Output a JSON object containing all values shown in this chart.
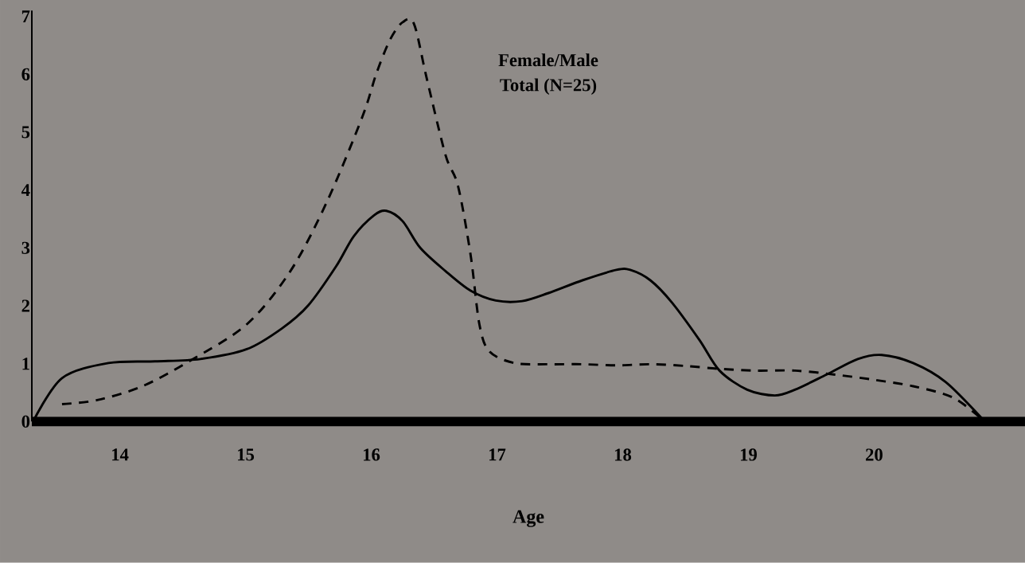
{
  "chart_data": {
    "type": "line",
    "xlabel": "Age",
    "annotations": [
      "Female/Male",
      "Total (N=25)"
    ],
    "xlim": [
      13.3,
      21.2
    ],
    "ylim": [
      0,
      7.1
    ],
    "xticks": [
      14,
      15,
      16,
      17,
      18,
      19,
      20
    ],
    "yticks": [
      0,
      1,
      2,
      3,
      4,
      5,
      6,
      7
    ],
    "grid": false,
    "marker": "none",
    "series": [
      {
        "color": "#000000",
        "line_style": "solid",
        "x": [
          13.31,
          13.54,
          13.91,
          14.28,
          14.64,
          15.01,
          15.29,
          15.5,
          15.72,
          15.86,
          16.02,
          16.12,
          16.25,
          16.39,
          16.59,
          16.79,
          16.99,
          17.2,
          17.41,
          17.68,
          17.95,
          18.06,
          18.22,
          18.39,
          18.61,
          18.77,
          18.99,
          19.21,
          19.37,
          19.62,
          19.87,
          20.06,
          20.31,
          20.57,
          20.88
        ],
        "values": [
          0,
          0.75,
          1.01,
          1.04,
          1.08,
          1.25,
          1.61,
          2.01,
          2.68,
          3.2,
          3.56,
          3.64,
          3.46,
          3.0,
          2.6,
          2.26,
          2.09,
          2.08,
          2.22,
          2.44,
          2.62,
          2.62,
          2.44,
          2.06,
          1.41,
          0.88,
          0.55,
          0.45,
          0.55,
          0.81,
          1.08,
          1.15,
          1.01,
          0.68,
          0
        ]
      },
      {
        "color": "#000000",
        "line_style": "dashed",
        "x": [
          13.54,
          13.82,
          14.18,
          14.55,
          15.01,
          15.36,
          15.65,
          15.93,
          16.04,
          16.15,
          16.25,
          16.34,
          16.44,
          16.59,
          16.69,
          16.79,
          16.86,
          16.94,
          17.14,
          17.41,
          17.68,
          17.95,
          18.22,
          18.5,
          18.77,
          19.06,
          19.37,
          19.69,
          20.0,
          20.31,
          20.63,
          20.88
        ],
        "values": [
          0.3,
          0.37,
          0.61,
          1.04,
          1.68,
          2.61,
          3.81,
          5.27,
          6.01,
          6.6,
          6.9,
          6.87,
          5.94,
          4.61,
          4.07,
          2.88,
          1.68,
          1.21,
          1.01,
          0.99,
          0.99,
          0.97,
          0.99,
          0.96,
          0.91,
          0.88,
          0.88,
          0.81,
          0.72,
          0.61,
          0.41,
          0
        ]
      }
    ]
  }
}
